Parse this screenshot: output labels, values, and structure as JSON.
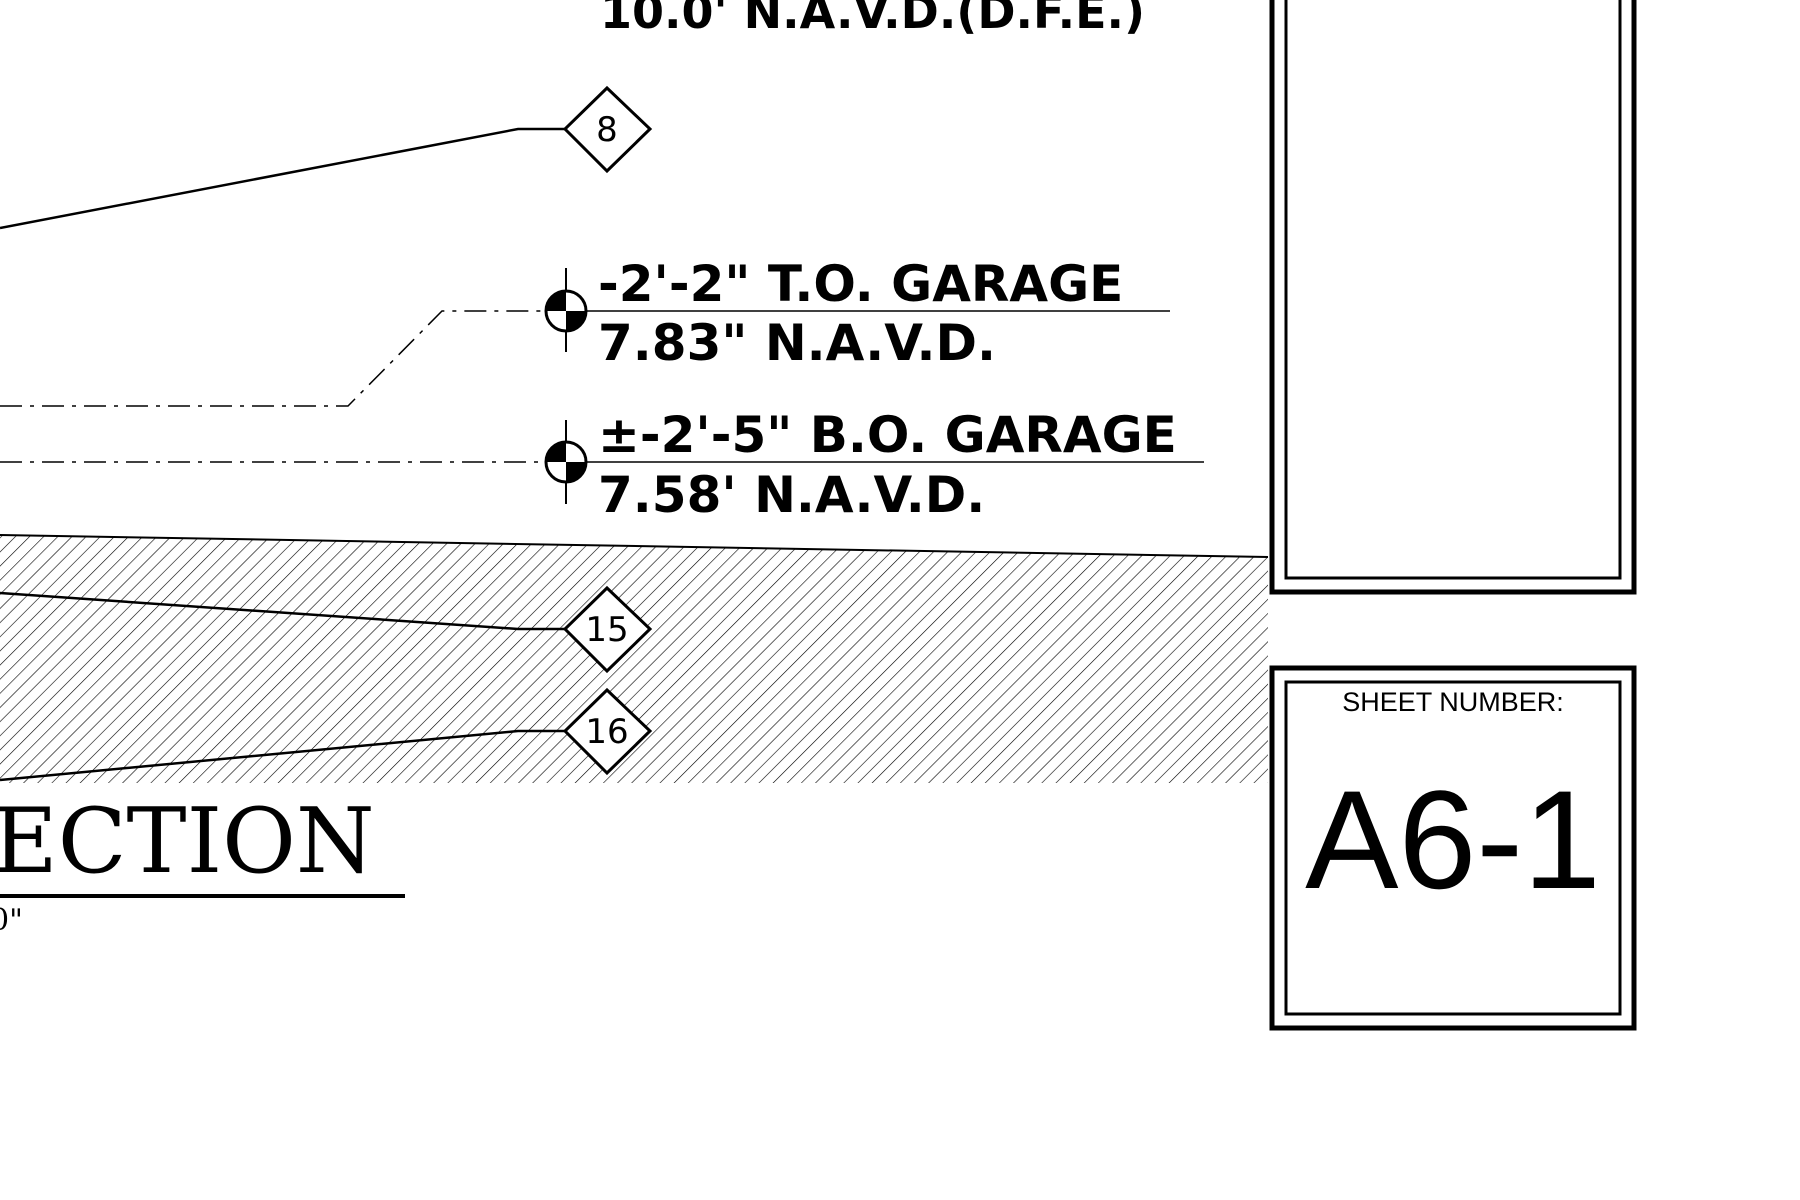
{
  "elevations": {
    "top_cut": {
      "text": "10.0' N.A.V.D.(D.F.E.)"
    },
    "to_garage": {
      "line1": "-2'-2\" T.O. GARAGE",
      "line2": "7.83\" N.A.V.D."
    },
    "bo_garage": {
      "line1": "±-2'-5\" B.O. GARAGE",
      "line2": "7.58' N.A.V.D."
    }
  },
  "keynotes": [
    "8",
    "15",
    "16"
  ],
  "section_title": {
    "text": "ECTION",
    "scale_fragment": "0\""
  },
  "sheet": {
    "label": "SHEET NUMBER:",
    "number": "A6-1"
  },
  "colors": {
    "ink": "#000000",
    "paper": "#ffffff"
  },
  "icons": {
    "elevation_marker": "elevation-datum-icon",
    "keynote": "keynote-diamond-icon"
  }
}
